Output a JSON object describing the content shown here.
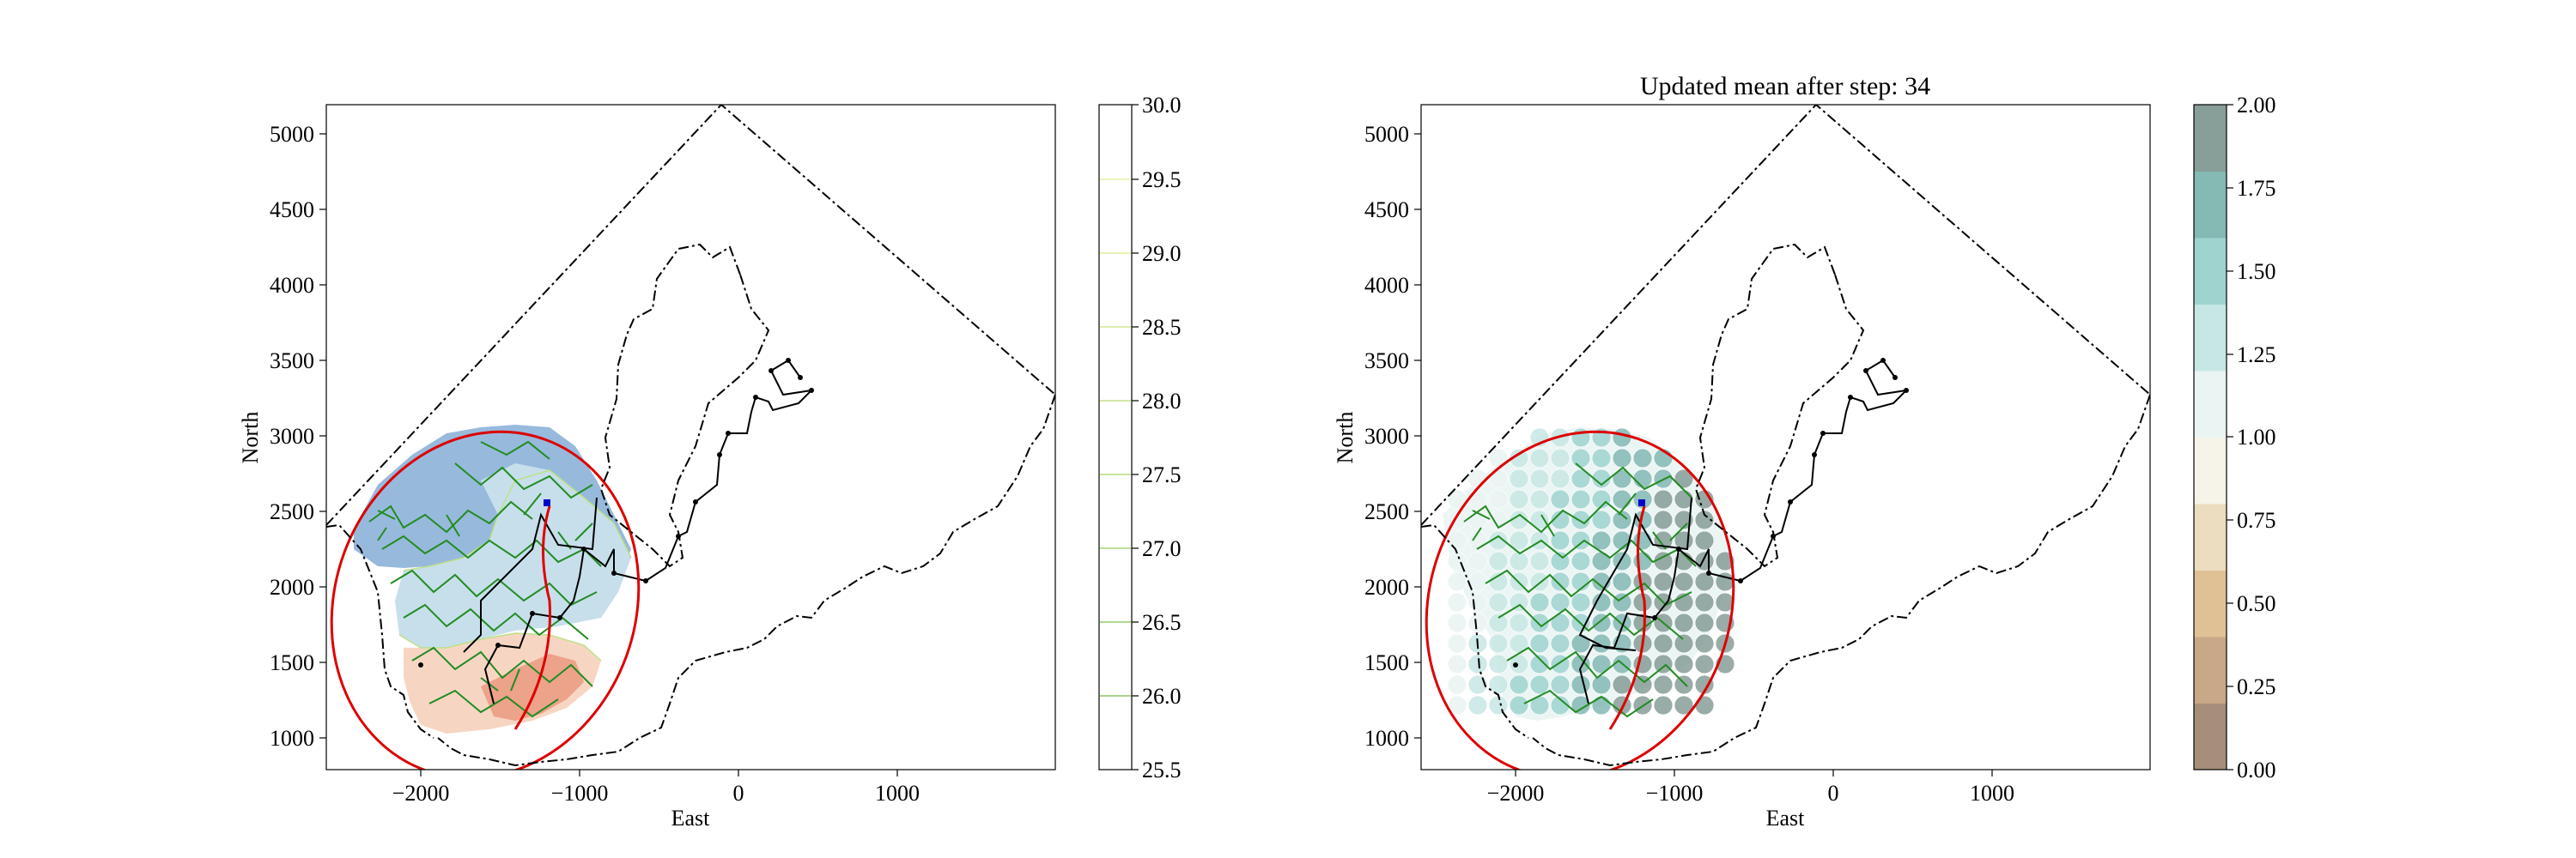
{
  "chart_data": [
    {
      "type": "contour",
      "title": "",
      "xlabel": "East",
      "ylabel": "North",
      "xlim": [
        -2650,
        1950
      ],
      "ylim": [
        800,
        5200
      ],
      "xticks": [
        -2000,
        -1000,
        0,
        1000
      ],
      "xtick_labels": [
        "−2000",
        "−1000",
        "0",
        "1000"
      ],
      "yticks": [
        1000,
        1500,
        2000,
        2500,
        3000,
        3500,
        4000,
        4500,
        5000
      ],
      "ytick_labels": [
        "1000",
        "1500",
        "2000",
        "2500",
        "3000",
        "3500",
        "4000",
        "4500",
        "5000"
      ],
      "colorbar": {
        "range": [
          25.5,
          30.0
        ],
        "ticks": [
          25.5,
          26.0,
          26.5,
          27.0,
          27.5,
          28.0,
          28.5,
          29.0,
          29.5,
          30.0
        ],
        "tick_labels": [
          "25.5",
          "26.0",
          "26.5",
          "27.0",
          "27.5",
          "28.0",
          "28.5",
          "29.0",
          "29.5",
          "30.0"
        ],
        "style": "contour lines"
      },
      "colors": {
        "field_low": "#e8866a",
        "field_mid_low": "#f6d2bd",
        "field_mid": "#c2dce9",
        "field_high": "#8cb3d9",
        "ellipse": "#dd0000",
        "lawnmower": "#228b22",
        "path": "#000000",
        "boundary": "#000000",
        "agent": "#0000cc"
      }
    },
    {
      "type": "scatter",
      "title": "Updated mean after step: 34",
      "xlabel": "East",
      "ylabel": "North",
      "xlim": [
        -2650,
        1950
      ],
      "ylim": [
        800,
        5200
      ],
      "xticks": [
        -2000,
        -1000,
        0,
        1000
      ],
      "xtick_labels": [
        "−2000",
        "−1000",
        "0",
        "1000"
      ],
      "yticks": [
        1000,
        1500,
        2000,
        2500,
        3000,
        3500,
        4000,
        4500,
        5000
      ],
      "ytick_labels": [
        "1000",
        "1500",
        "2000",
        "2500",
        "3000",
        "3500",
        "4000",
        "4500",
        "5000"
      ],
      "colorbar": {
        "range": [
          0.0,
          2.0
        ],
        "ticks": [
          0.0,
          0.25,
          0.5,
          0.75,
          1.0,
          1.25,
          1.5,
          1.75,
          2.0
        ],
        "tick_labels": [
          "0.00",
          "0.25",
          "0.50",
          "0.75",
          "1.00",
          "1.25",
          "1.50",
          "1.75",
          "2.00"
        ],
        "style": "filled bands",
        "band_colors": [
          "#a58f7a",
          "#c8a887",
          "#e0c196",
          "#ecdcc0",
          "#f6f3e8",
          "#eaf4f3",
          "#c7e7e4",
          "#9fd3d0",
          "#84b9b4",
          "#889e98"
        ]
      },
      "colors": {
        "ellipse": "#dd0000",
        "lawnmower": "#228b22",
        "path": "#000000",
        "boundary": "#000000",
        "agent": "#0000cc"
      }
    }
  ]
}
